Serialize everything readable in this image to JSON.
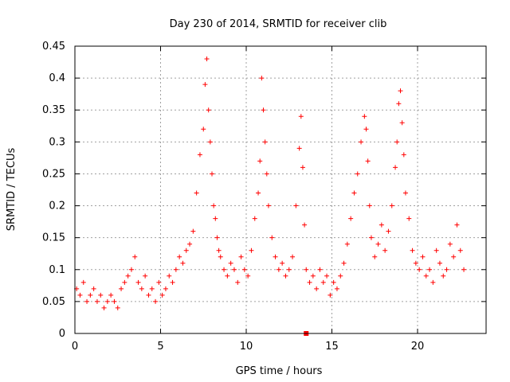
{
  "chart_data": {
    "type": "scatter",
    "title": "Day 230 of 2014, SRMTID for receiver clib",
    "xlabel": "GPS time / hours",
    "ylabel": "SRMTID / TECUs",
    "xlim": [
      0,
      24
    ],
    "ylim": [
      0,
      0.45
    ],
    "x_ticks": [
      0,
      5,
      10,
      15,
      20
    ],
    "x_tick_labels": [
      "0",
      "5",
      "10",
      "15",
      "20"
    ],
    "y_ticks": [
      0,
      0.05,
      0.1,
      0.15,
      0.2,
      0.25,
      0.3,
      0.35,
      0.4,
      0.45
    ],
    "y_tick_labels": [
      "0",
      "0.05",
      "0.1",
      "0.15",
      "0.2",
      "0.25",
      "0.3",
      "0.35",
      "0.4",
      "0.45"
    ],
    "grid": true,
    "marker": "+",
    "color": "#ff0000",
    "outlier_point": {
      "x": 13.5,
      "y": 0.0
    },
    "series": [
      {
        "name": "SRMTID",
        "x": [
          0.1,
          0.3,
          0.5,
          0.7,
          0.9,
          1.1,
          1.3,
          1.5,
          1.7,
          1.9,
          2.1,
          2.3,
          2.5,
          2.7,
          2.9,
          3.1,
          3.3,
          3.5,
          3.7,
          3.9,
          4.1,
          4.3,
          4.5,
          4.7,
          4.9,
          5.1,
          5.3,
          5.5,
          5.7,
          5.9,
          6.1,
          6.3,
          6.5,
          6.7,
          6.9,
          7.1,
          7.3,
          7.5,
          7.6,
          7.7,
          7.8,
          7.9,
          8.0,
          8.1,
          8.2,
          8.3,
          8.4,
          8.5,
          8.7,
          8.9,
          9.1,
          9.3,
          9.5,
          9.7,
          9.9,
          10.1,
          10.3,
          10.5,
          10.7,
          10.8,
          10.9,
          11.0,
          11.1,
          11.2,
          11.3,
          11.5,
          11.7,
          11.9,
          12.1,
          12.3,
          12.5,
          12.7,
          12.9,
          13.1,
          13.2,
          13.3,
          13.4,
          13.5,
          13.7,
          13.9,
          14.1,
          14.3,
          14.5,
          14.7,
          14.9,
          15.1,
          15.3,
          15.5,
          15.7,
          15.9,
          16.1,
          16.3,
          16.5,
          16.7,
          16.9,
          17.0,
          17.1,
          17.2,
          17.3,
          17.5,
          17.7,
          17.9,
          18.1,
          18.3,
          18.5,
          18.7,
          18.8,
          18.9,
          19.0,
          19.1,
          19.2,
          19.3,
          19.5,
          19.7,
          19.9,
          20.1,
          20.3,
          20.5,
          20.7,
          20.9,
          21.1,
          21.3,
          21.5,
          21.7,
          21.9,
          22.1,
          22.3,
          22.5,
          22.7
        ],
        "y": [
          0.07,
          0.06,
          0.08,
          0.05,
          0.06,
          0.07,
          0.05,
          0.06,
          0.04,
          0.05,
          0.06,
          0.05,
          0.04,
          0.07,
          0.08,
          0.09,
          0.1,
          0.12,
          0.08,
          0.07,
          0.09,
          0.06,
          0.07,
          0.05,
          0.08,
          0.06,
          0.07,
          0.09,
          0.08,
          0.1,
          0.12,
          0.11,
          0.13,
          0.14,
          0.16,
          0.22,
          0.28,
          0.32,
          0.39,
          0.43,
          0.35,
          0.3,
          0.25,
          0.2,
          0.18,
          0.15,
          0.13,
          0.12,
          0.1,
          0.09,
          0.11,
          0.1,
          0.08,
          0.12,
          0.1,
          0.09,
          0.13,
          0.18,
          0.22,
          0.27,
          0.4,
          0.35,
          0.3,
          0.25,
          0.2,
          0.15,
          0.12,
          0.1,
          0.11,
          0.09,
          0.1,
          0.12,
          0.2,
          0.29,
          0.34,
          0.26,
          0.17,
          0.1,
          0.08,
          0.09,
          0.07,
          0.1,
          0.08,
          0.09,
          0.06,
          0.08,
          0.07,
          0.09,
          0.11,
          0.14,
          0.18,
          0.22,
          0.25,
          0.3,
          0.34,
          0.32,
          0.27,
          0.2,
          0.15,
          0.12,
          0.14,
          0.17,
          0.13,
          0.16,
          0.2,
          0.26,
          0.3,
          0.36,
          0.38,
          0.33,
          0.28,
          0.22,
          0.18,
          0.13,
          0.11,
          0.1,
          0.12,
          0.09,
          0.1,
          0.08,
          0.13,
          0.11,
          0.09,
          0.1,
          0.14,
          0.12,
          0.17,
          0.13,
          0.1
        ]
      }
    ]
  }
}
